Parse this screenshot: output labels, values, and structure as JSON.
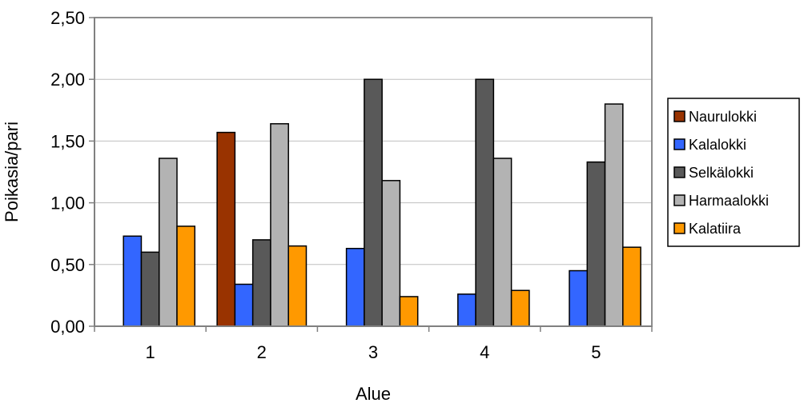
{
  "chart_data": {
    "type": "bar",
    "title": "",
    "xlabel": "Alue",
    "ylabel": "Poikasia/pari",
    "categories": [
      "1",
      "2",
      "3",
      "4",
      "5"
    ],
    "y_ticks": [
      "0,00",
      "0,50",
      "1,00",
      "1,50",
      "2,00",
      "2,50"
    ],
    "ylim": [
      0,
      2.5
    ],
    "grid": true,
    "legend_position": "right",
    "series": [
      {
        "name": "Naurulokki",
        "color": "#993300",
        "values": [
          null,
          1.57,
          null,
          null,
          null
        ]
      },
      {
        "name": "Kalalokki",
        "color": "#3366FF",
        "values": [
          0.73,
          0.34,
          0.63,
          0.26,
          0.45
        ]
      },
      {
        "name": "Selkälokki",
        "color": "#595959",
        "values": [
          0.6,
          0.7,
          2.0,
          2.0,
          1.33
        ]
      },
      {
        "name": "Harmaalokki",
        "color": "#B3B3B3",
        "values": [
          1.36,
          1.64,
          1.18,
          1.36,
          1.8
        ]
      },
      {
        "name": "Kalatiira",
        "color": "#FF9900",
        "values": [
          0.81,
          0.65,
          0.24,
          0.29,
          0.64
        ]
      }
    ]
  }
}
